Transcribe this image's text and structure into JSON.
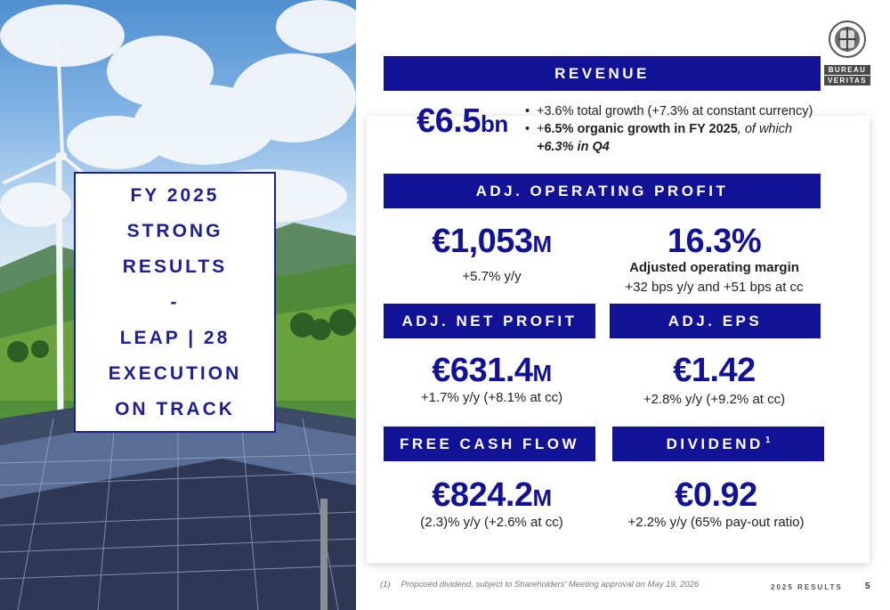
{
  "colors": {
    "brand_blue": "#121296",
    "title_blue": "#1f1f8f",
    "text": "#222222"
  },
  "title_box": {
    "lines": [
      "FY 2025",
      "STRONG",
      "RESULTS",
      "-",
      "LEAP | 28",
      "EXECUTION",
      "ON TRACK"
    ]
  },
  "logo": {
    "icon": "bureau-veritas-seal-icon",
    "line1": "BUREAU",
    "line2": "VERITAS"
  },
  "revenue": {
    "band": "REVENUE",
    "value": "€6.5",
    "unit": "bn",
    "bullet1": "+3.6% total growth (+7.3% at constant currency)",
    "bullet2_prefix": "+",
    "bullet2_bold": "6.5% organic growth in FY 2025",
    "bullet2_italic": ", of which",
    "bullet2_bold_italic": "+6.3% in Q4"
  },
  "operating_profit": {
    "band": "ADJ. OPERATING PROFIT",
    "value": "€1,053",
    "unit": "M",
    "change": "+5.7% y/y",
    "margin_value": "16.3%",
    "margin_label": "Adjusted operating margin",
    "margin_change": "+32 bps y/y and +51 bps at cc"
  },
  "net_profit": {
    "band": "ADJ. NET PROFIT",
    "value": "€631.4",
    "unit": "M",
    "change": "+1.7% y/y  (+8.1% at cc)"
  },
  "eps": {
    "band": "ADJ. EPS",
    "value": "€1.42",
    "change": "+2.8% y/y (+9.2% at cc)"
  },
  "fcf": {
    "band": "FREE CASH FLOW",
    "value": "€824.2",
    "unit": "M",
    "change": "(2.3)% y/y (+2.6% at cc)"
  },
  "dividend": {
    "band": "DIVIDEND",
    "footnote_marker": "1",
    "value": "€0.92",
    "change": "+2.2% y/y (65% pay-out ratio)"
  },
  "footnote": {
    "number": "(1)",
    "text": "Proposed dividend, subject to Shareholders' Meeting approval on May 19, 2026"
  },
  "footer": {
    "label": "2025 RESULTS",
    "page": "5"
  }
}
